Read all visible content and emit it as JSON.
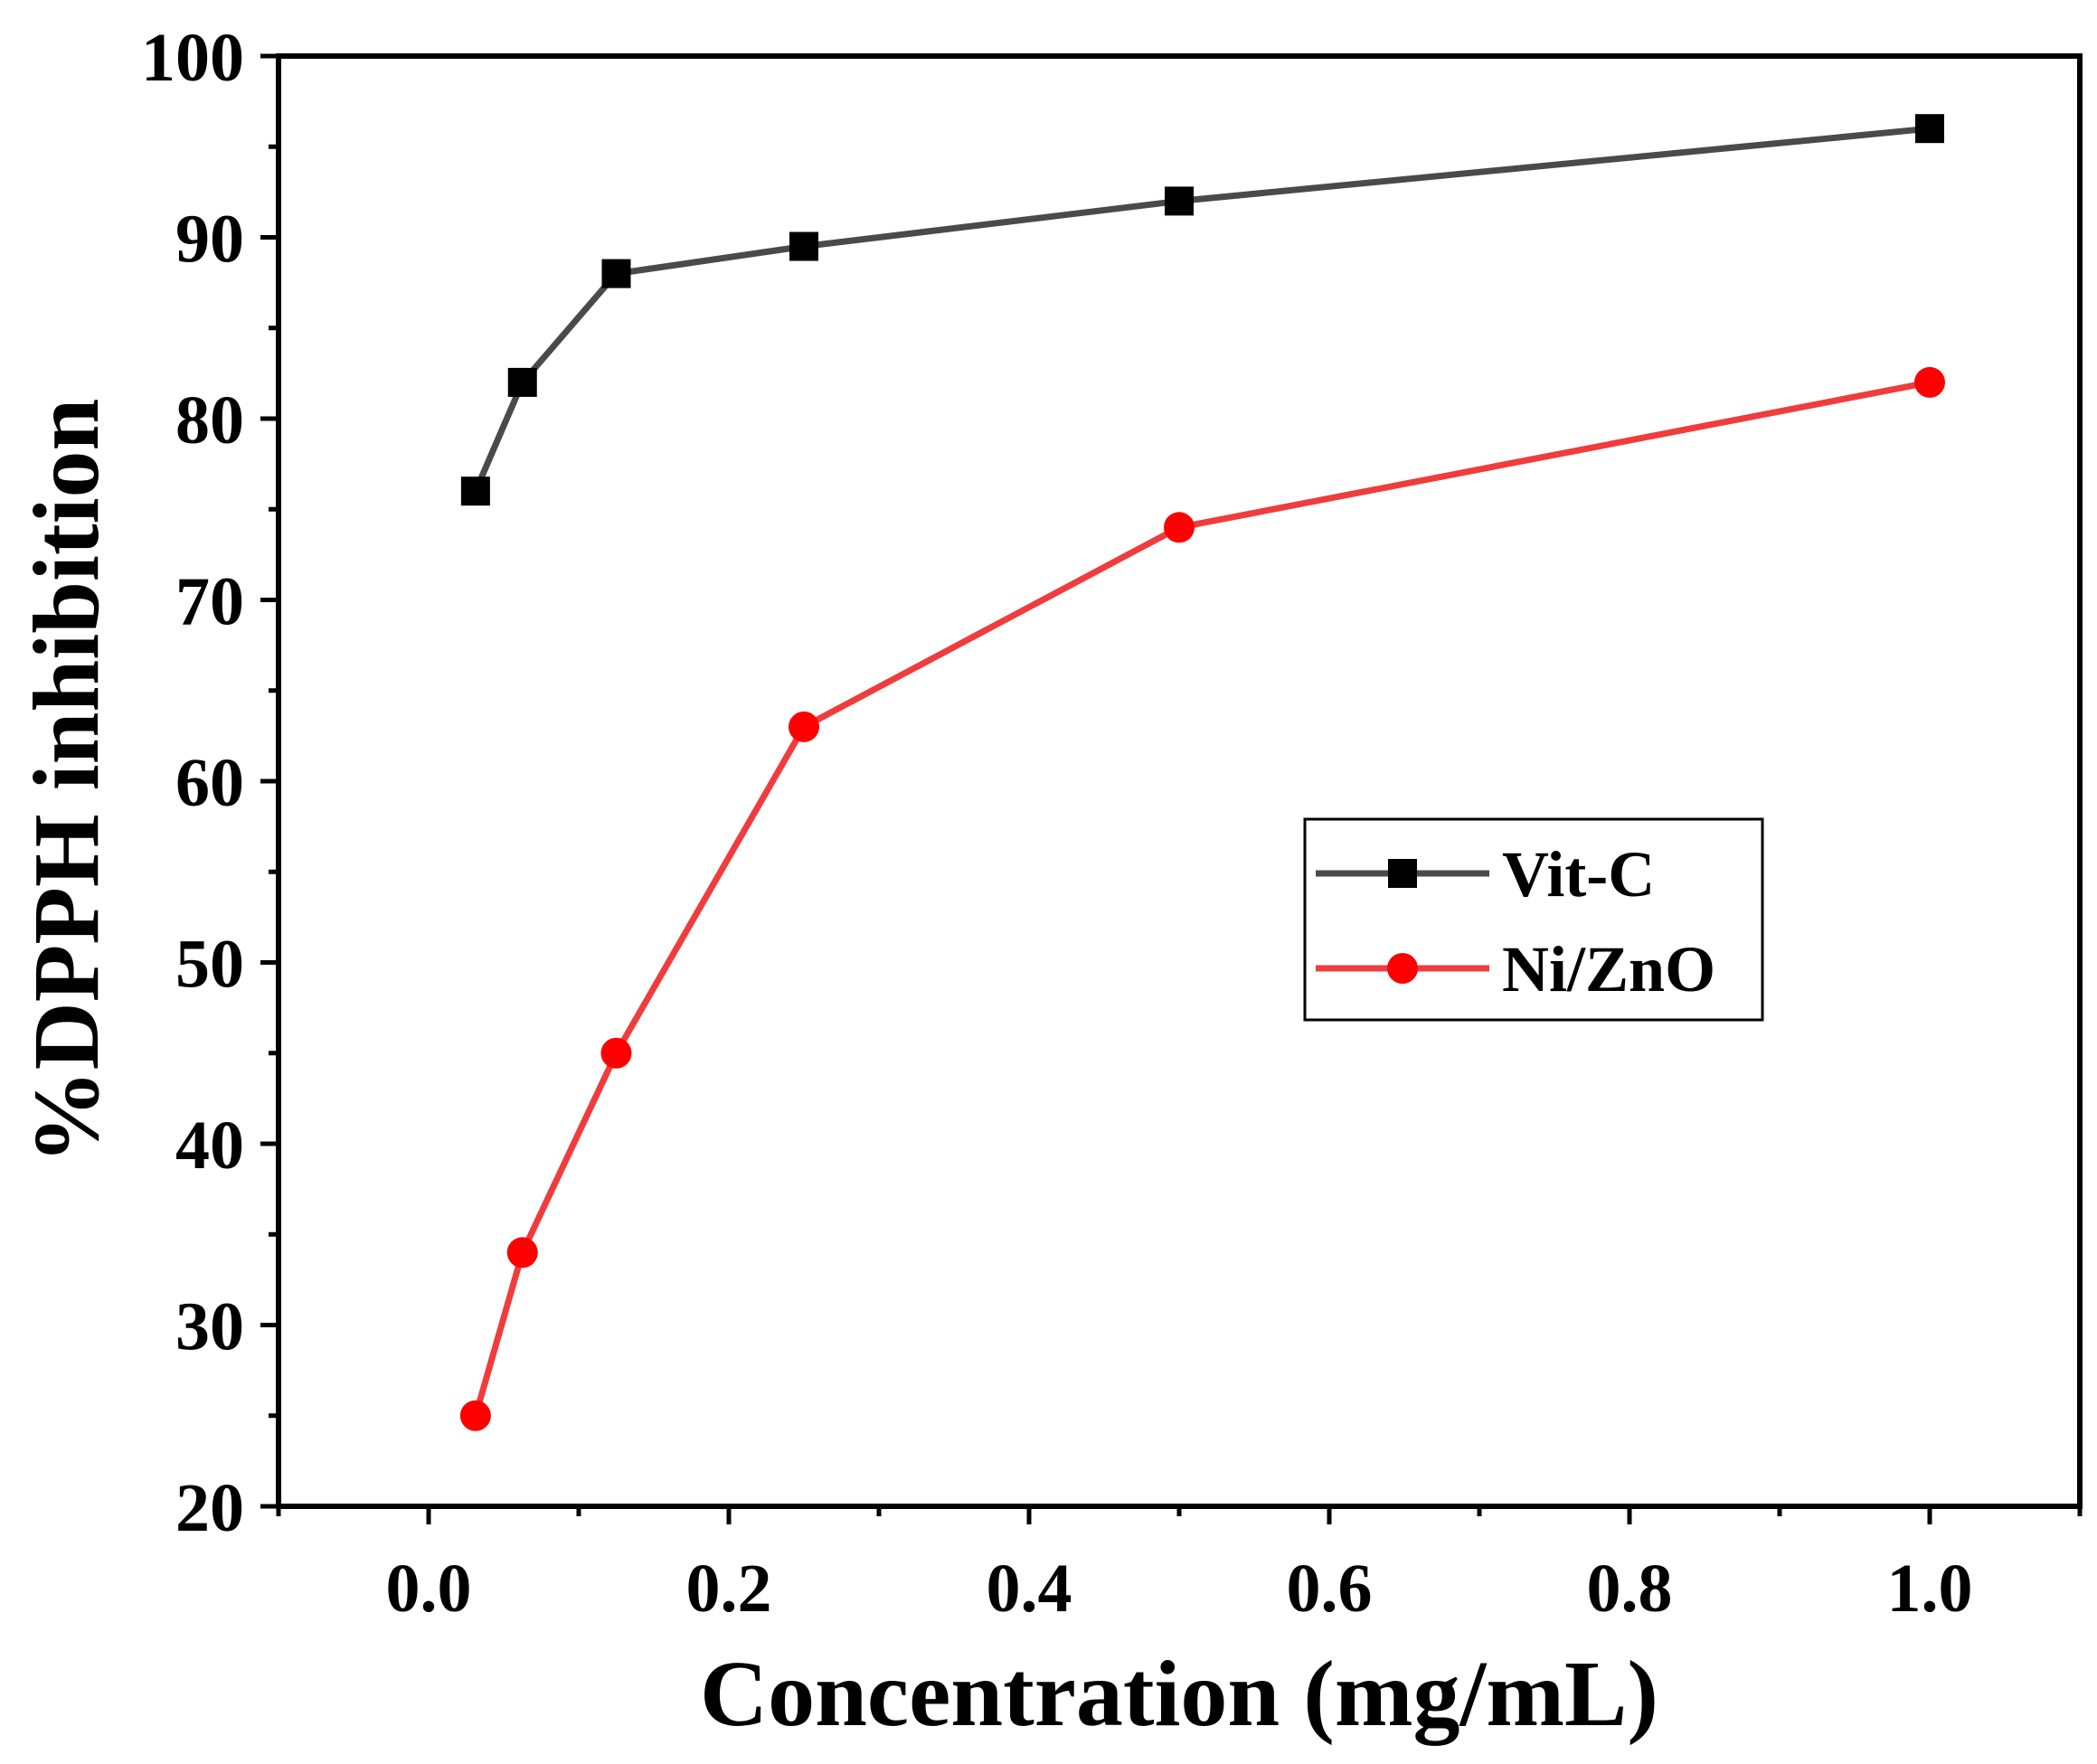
{
  "chart_data": {
    "type": "line",
    "title": "",
    "xlabel": "Concentration (mg/mL)",
    "ylabel": "%DPPH inhibition",
    "xlim": [
      -0.1,
      1.1
    ],
    "ylim": [
      20,
      100
    ],
    "xticks": [
      "0.0",
      "0.2",
      "0.4",
      "0.6",
      "0.8",
      "1.0"
    ],
    "yticks": [
      "20",
      "30",
      "40",
      "50",
      "60",
      "70",
      "80",
      "90",
      "100"
    ],
    "grid": false,
    "legend_position": "center-right",
    "series": [
      {
        "name": "Vit-C",
        "color": "#4a4a4a",
        "marker_color": "#000000",
        "marker": "square",
        "x": [
          0.03125,
          0.0625,
          0.125,
          0.25,
          0.5,
          1.0
        ],
        "y": [
          76,
          82,
          88,
          89.5,
          92,
          96
        ]
      },
      {
        "name": "Ni/ZnO",
        "color": "#f03c3c",
        "marker_color": "#ff0000",
        "marker": "circle",
        "x": [
          0.03125,
          0.0625,
          0.125,
          0.25,
          0.5,
          1.0
        ],
        "y": [
          25,
          34,
          45,
          63,
          74,
          82
        ]
      }
    ]
  }
}
